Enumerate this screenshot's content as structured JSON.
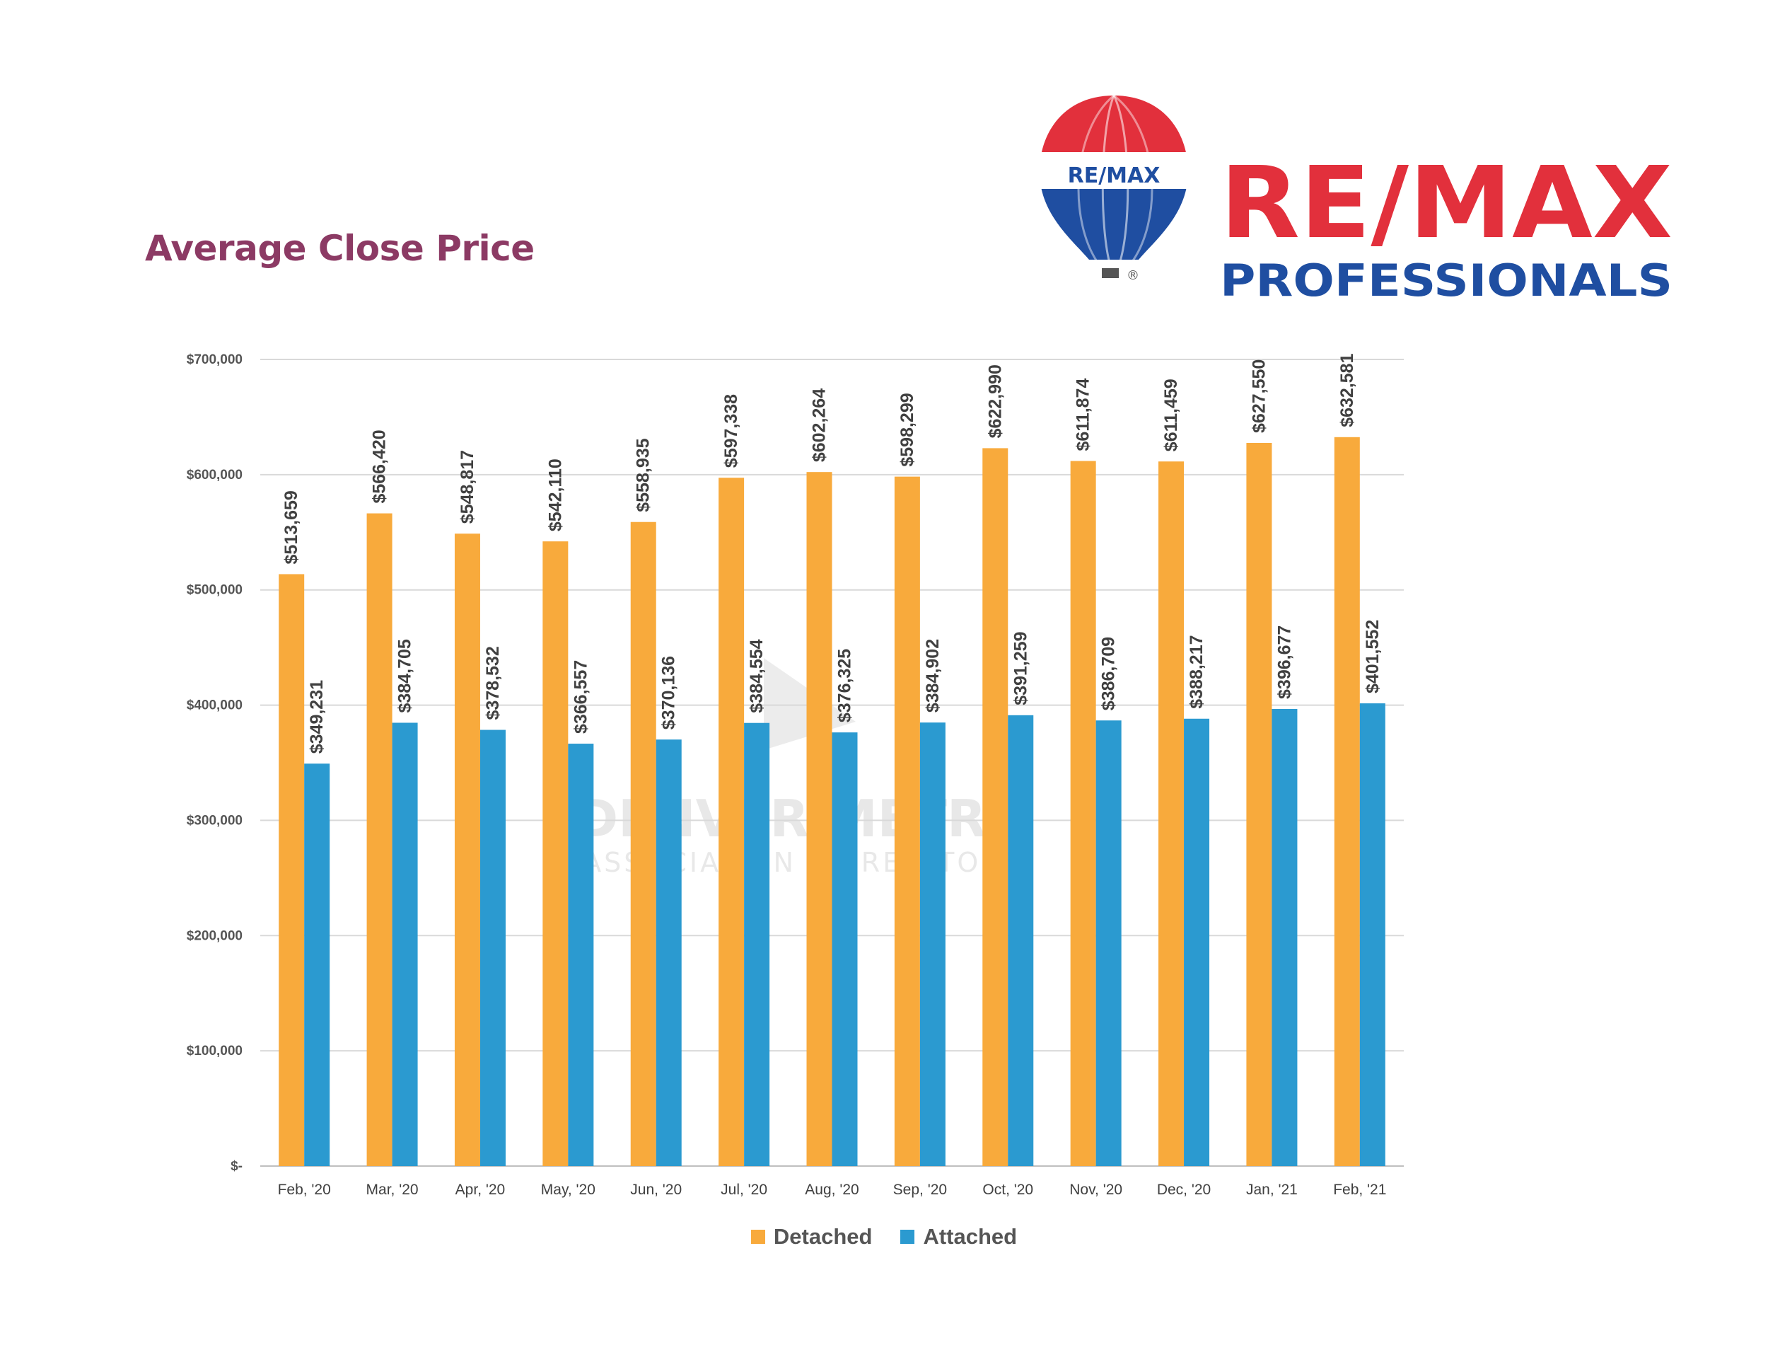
{
  "page": {
    "title": "Average Close Price",
    "watermark_line1": "DENVER METRO",
    "watermark_line2": "ASSOCIATION OF REALTORS"
  },
  "logo": {
    "balloon_text": "RE/MAX",
    "wordmark": "RE/MAX",
    "subtitle": "PROFESSIONALS",
    "registered_mark": "®",
    "colors": {
      "red": "#e2303c",
      "blue": "#1f4ea1"
    }
  },
  "chart_data": {
    "type": "bar",
    "categories": [
      "Feb, '20",
      "Mar, '20",
      "Apr, '20",
      "May, '20",
      "Jun, '20",
      "Jul, '20",
      "Aug, '20",
      "Sep, '20",
      "Oct, '20",
      "Nov, '20",
      "Dec, '20",
      "Jan, '21",
      "Feb, '21"
    ],
    "series": [
      {
        "name": "Detached",
        "color": "#f8aa3c",
        "values": [
          513659,
          566420,
          548817,
          542110,
          558935,
          597338,
          602264,
          598299,
          622990,
          611874,
          611459,
          627550,
          632581
        ],
        "labels": [
          "$513,659",
          "$566,420",
          "$548,817",
          "$542,110",
          "$558,935",
          "$597,338",
          "$602,264",
          "$598,299",
          "$622,990",
          "$611,874",
          "$611,459",
          "$627,550",
          "$632,581"
        ]
      },
      {
        "name": "Attached",
        "color": "#2b9ad0",
        "values": [
          349231,
          384705,
          378532,
          366557,
          370136,
          384554,
          376325,
          384902,
          391259,
          386709,
          388217,
          396677,
          401552
        ],
        "labels": [
          "$349,231",
          "$384,705",
          "$378,532",
          "$366,557",
          "$370,136",
          "$384,554",
          "$376,325",
          "$384,902",
          "$391,259",
          "$386,709",
          "$388,217",
          "$396,677",
          "$401,552"
        ]
      }
    ],
    "yticks": [
      "$-",
      "$100,000",
      "$200,000",
      "$300,000",
      "$400,000",
      "$500,000",
      "$600,000",
      "$700,000"
    ],
    "ylim": [
      0,
      700000
    ],
    "grid": true,
    "legend_position": "bottom"
  }
}
